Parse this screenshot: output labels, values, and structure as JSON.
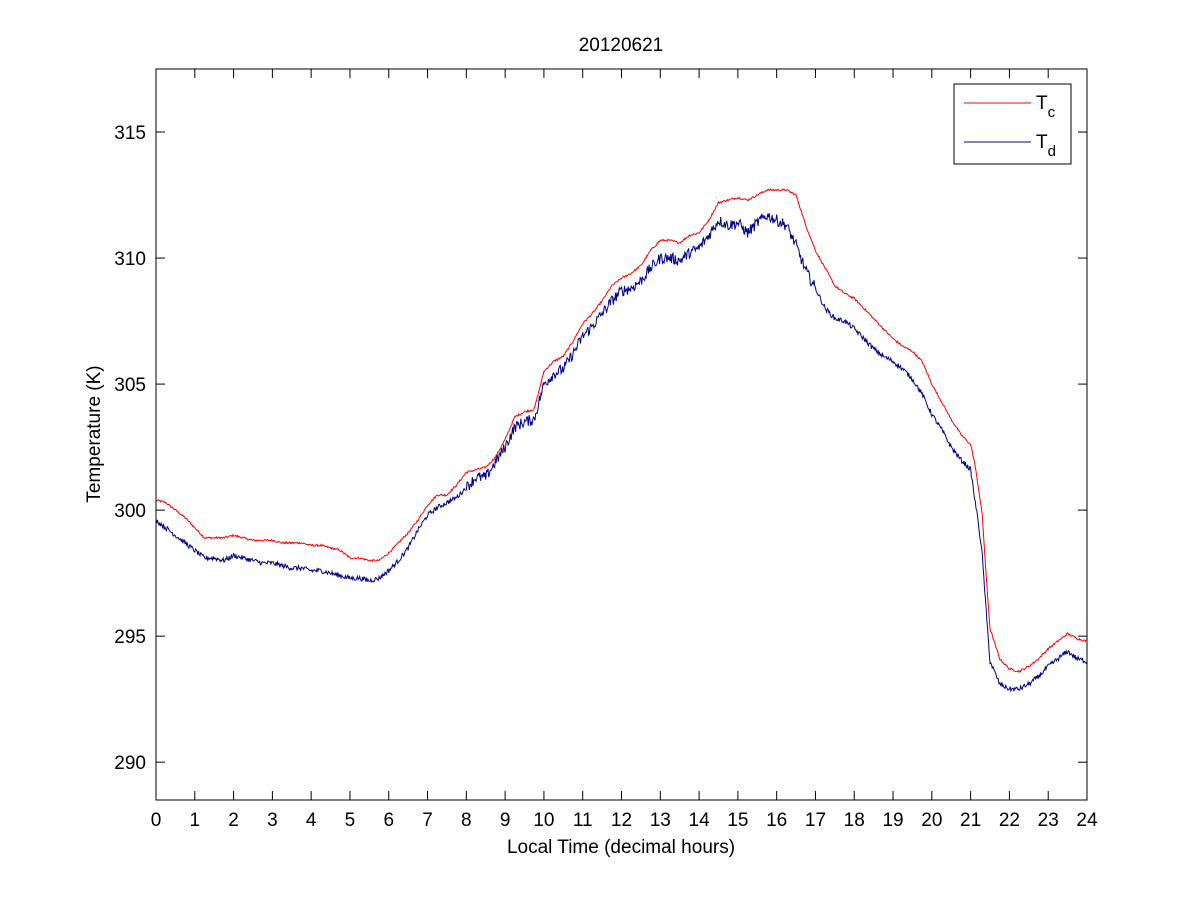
{
  "chart_data": {
    "type": "line",
    "title": "20120621",
    "xlabel": "Local Time (decimal hours)",
    "ylabel": "Temperature (K)",
    "xlim": [
      0,
      24
    ],
    "ylim": [
      288.5,
      317.5
    ],
    "xticks": [
      0,
      1,
      2,
      3,
      4,
      5,
      6,
      7,
      8,
      9,
      10,
      11,
      12,
      13,
      14,
      15,
      16,
      17,
      18,
      19,
      20,
      21,
      22,
      23,
      24
    ],
    "yticks": [
      290,
      295,
      300,
      305,
      310,
      315
    ],
    "grid": false,
    "legend_position": "top-right",
    "series": [
      {
        "name": "T",
        "subscript": "c",
        "color": "#ff0000",
        "points": [
          [
            0.0,
            300.4
          ],
          [
            0.25,
            300.3
          ],
          [
            0.5,
            300.0
          ],
          [
            0.75,
            299.7
          ],
          [
            1.0,
            299.3
          ],
          [
            1.25,
            298.9
          ],
          [
            1.5,
            298.9
          ],
          [
            1.75,
            298.9
          ],
          [
            2.0,
            299.0
          ],
          [
            2.25,
            298.9
          ],
          [
            2.5,
            298.8
          ],
          [
            2.75,
            298.8
          ],
          [
            3.0,
            298.8
          ],
          [
            3.25,
            298.7
          ],
          [
            3.5,
            298.7
          ],
          [
            3.75,
            298.7
          ],
          [
            4.0,
            298.6
          ],
          [
            4.25,
            298.6
          ],
          [
            4.5,
            298.5
          ],
          [
            4.75,
            298.4
          ],
          [
            5.0,
            298.1
          ],
          [
            5.25,
            298.1
          ],
          [
            5.5,
            298.0
          ],
          [
            5.75,
            298.0
          ],
          [
            6.0,
            298.3
          ],
          [
            6.25,
            298.7
          ],
          [
            6.5,
            299.1
          ],
          [
            6.75,
            299.6
          ],
          [
            7.0,
            300.2
          ],
          [
            7.25,
            300.6
          ],
          [
            7.5,
            300.6
          ],
          [
            7.75,
            301.0
          ],
          [
            8.0,
            301.5
          ],
          [
            8.25,
            301.6
          ],
          [
            8.5,
            301.7
          ],
          [
            8.75,
            302.1
          ],
          [
            9.0,
            302.8
          ],
          [
            9.25,
            303.7
          ],
          [
            9.5,
            303.9
          ],
          [
            9.75,
            304.0
          ],
          [
            10.0,
            305.5
          ],
          [
            10.25,
            305.9
          ],
          [
            10.5,
            306.1
          ],
          [
            10.75,
            306.7
          ],
          [
            11.0,
            307.4
          ],
          [
            11.25,
            307.8
          ],
          [
            11.5,
            308.3
          ],
          [
            11.75,
            308.9
          ],
          [
            12.0,
            309.2
          ],
          [
            12.25,
            309.4
          ],
          [
            12.5,
            309.7
          ],
          [
            12.75,
            310.3
          ],
          [
            13.0,
            310.7
          ],
          [
            13.25,
            310.7
          ],
          [
            13.5,
            310.6
          ],
          [
            13.75,
            310.9
          ],
          [
            14.0,
            311.0
          ],
          [
            14.25,
            311.5
          ],
          [
            14.5,
            312.2
          ],
          [
            14.75,
            312.3
          ],
          [
            15.0,
            312.4
          ],
          [
            15.25,
            312.3
          ],
          [
            15.5,
            312.5
          ],
          [
            15.75,
            312.7
          ],
          [
            16.0,
            312.7
          ],
          [
            16.25,
            312.7
          ],
          [
            16.5,
            312.5
          ],
          [
            16.75,
            311.3
          ],
          [
            17.0,
            310.3
          ],
          [
            17.25,
            309.6
          ],
          [
            17.5,
            308.9
          ],
          [
            17.75,
            308.6
          ],
          [
            18.0,
            308.4
          ],
          [
            18.25,
            308.0
          ],
          [
            18.5,
            307.6
          ],
          [
            18.75,
            307.2
          ],
          [
            19.0,
            306.8
          ],
          [
            19.25,
            306.5
          ],
          [
            19.5,
            306.3
          ],
          [
            19.75,
            305.9
          ],
          [
            20.0,
            305.0
          ],
          [
            20.25,
            304.3
          ],
          [
            20.5,
            303.6
          ],
          [
            20.75,
            303.0
          ],
          [
            21.0,
            302.6
          ],
          [
            21.1,
            301.9
          ],
          [
            21.2,
            300.9
          ],
          [
            21.3,
            299.8
          ],
          [
            21.4,
            297.4
          ],
          [
            21.5,
            295.3
          ],
          [
            21.75,
            294.1
          ],
          [
            22.0,
            293.7
          ],
          [
            22.25,
            293.6
          ],
          [
            22.5,
            293.8
          ],
          [
            22.75,
            294.1
          ],
          [
            23.0,
            294.5
          ],
          [
            23.25,
            294.8
          ],
          [
            23.5,
            295.1
          ],
          [
            23.75,
            294.9
          ],
          [
            24.0,
            294.8
          ]
        ]
      },
      {
        "name": "T",
        "subscript": "d",
        "color": "#00008b",
        "points": [
          [
            0.0,
            299.6
          ],
          [
            0.25,
            299.3
          ],
          [
            0.5,
            299.0
          ],
          [
            0.75,
            298.7
          ],
          [
            1.0,
            298.4
          ],
          [
            1.25,
            298.1
          ],
          [
            1.5,
            298.1
          ],
          [
            1.75,
            298.0
          ],
          [
            2.0,
            298.2
          ],
          [
            2.25,
            298.1
          ],
          [
            2.5,
            298.0
          ],
          [
            2.75,
            297.9
          ],
          [
            3.0,
            297.9
          ],
          [
            3.25,
            297.8
          ],
          [
            3.5,
            297.7
          ],
          [
            3.75,
            297.7
          ],
          [
            4.0,
            297.6
          ],
          [
            4.25,
            297.6
          ],
          [
            4.5,
            297.5
          ],
          [
            4.75,
            297.4
          ],
          [
            5.0,
            297.3
          ],
          [
            5.25,
            297.3
          ],
          [
            5.5,
            297.2
          ],
          [
            5.75,
            297.3
          ],
          [
            6.0,
            297.6
          ],
          [
            6.25,
            298.0
          ],
          [
            6.5,
            298.5
          ],
          [
            6.75,
            299.2
          ],
          [
            7.0,
            299.8
          ],
          [
            7.25,
            300.1
          ],
          [
            7.5,
            300.3
          ],
          [
            7.75,
            300.5
          ],
          [
            8.0,
            300.9
          ],
          [
            8.25,
            301.3
          ],
          [
            8.5,
            301.3
          ],
          [
            8.75,
            301.9
          ],
          [
            9.0,
            302.5
          ],
          [
            9.25,
            303.3
          ],
          [
            9.5,
            303.5
          ],
          [
            9.75,
            303.6
          ],
          [
            10.0,
            305.0
          ],
          [
            10.25,
            305.4
          ],
          [
            10.5,
            305.6
          ],
          [
            10.75,
            306.2
          ],
          [
            11.0,
            306.9
          ],
          [
            11.25,
            307.3
          ],
          [
            11.5,
            307.8
          ],
          [
            11.75,
            308.3
          ],
          [
            12.0,
            308.7
          ],
          [
            12.25,
            308.8
          ],
          [
            12.5,
            309.1
          ],
          [
            12.75,
            309.6
          ],
          [
            13.0,
            310.0
          ],
          [
            13.25,
            310.0
          ],
          [
            13.5,
            309.9
          ],
          [
            13.75,
            310.2
          ],
          [
            14.0,
            310.4
          ],
          [
            14.25,
            310.9
          ],
          [
            14.5,
            311.5
          ],
          [
            14.75,
            311.3
          ],
          [
            15.0,
            311.4
          ],
          [
            15.25,
            311.0
          ],
          [
            15.5,
            311.4
          ],
          [
            15.75,
            311.7
          ],
          [
            16.0,
            311.5
          ],
          [
            16.25,
            311.3
          ],
          [
            16.5,
            310.5
          ],
          [
            16.75,
            309.5
          ],
          [
            17.0,
            308.8
          ],
          [
            17.25,
            308.0
          ],
          [
            17.5,
            307.6
          ],
          [
            17.75,
            307.5
          ],
          [
            18.0,
            307.2
          ],
          [
            18.25,
            306.8
          ],
          [
            18.5,
            306.4
          ],
          [
            18.75,
            306.1
          ],
          [
            19.0,
            305.9
          ],
          [
            19.25,
            305.6
          ],
          [
            19.5,
            305.2
          ],
          [
            19.75,
            304.6
          ],
          [
            20.0,
            303.8
          ],
          [
            20.25,
            303.2
          ],
          [
            20.5,
            302.5
          ],
          [
            20.75,
            302.0
          ],
          [
            21.0,
            301.6
          ],
          [
            21.1,
            300.5
          ],
          [
            21.2,
            299.5
          ],
          [
            21.3,
            298.2
          ],
          [
            21.4,
            296.0
          ],
          [
            21.5,
            294.0
          ],
          [
            21.75,
            293.1
          ],
          [
            22.0,
            292.9
          ],
          [
            22.25,
            292.9
          ],
          [
            22.5,
            293.1
          ],
          [
            22.75,
            293.4
          ],
          [
            23.0,
            293.8
          ],
          [
            23.25,
            294.1
          ],
          [
            23.5,
            294.4
          ],
          [
            23.75,
            294.1
          ],
          [
            24.0,
            294.0
          ]
        ]
      }
    ]
  }
}
